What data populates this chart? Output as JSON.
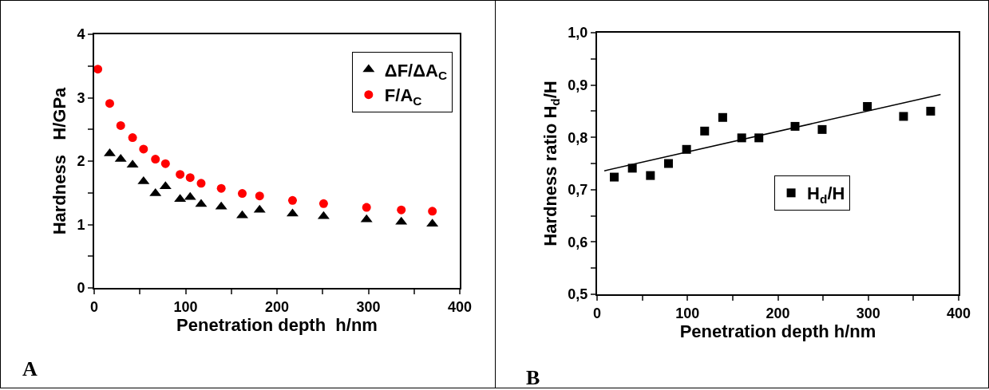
{
  "chart_data": [
    {
      "type": "scatter",
      "xlabel": "Penetration depth  h/nm",
      "ylabel": "Hardness   H/GPa",
      "annotations": [
        "A"
      ],
      "xlim": [
        0,
        400
      ],
      "xticks": [
        0,
        {
          "value": 50,
          "label": null
        },
        100,
        {
          "value": 150,
          "label": null
        },
        200,
        {
          "value": 250,
          "label": null
        },
        300,
        {
          "value": 350,
          "label": null
        },
        400
      ],
      "ylim": [
        0,
        4
      ],
      "yticks": [
        0,
        {
          "value": 0.5,
          "label": null
        },
        1,
        {
          "value": 1.5,
          "label": null
        },
        2,
        {
          "value": 2.5,
          "label": null
        },
        3,
        {
          "value": 3.5,
          "label": null
        },
        4
      ],
      "grid": false,
      "legend": "top right",
      "series": [
        {
          "name": "ΔF/ΔA$_{C}$",
          "color": "#000000",
          "marker": "triangle",
          "x": [
            17,
            29,
            42,
            54,
            67,
            78,
            94,
            105,
            117,
            139,
            162,
            181,
            217,
            251,
            298,
            336,
            370
          ],
          "values": [
            2.12,
            2.03,
            1.94,
            1.68,
            1.49,
            1.6,
            1.4,
            1.43,
            1.32,
            1.28,
            1.14,
            1.23,
            1.17,
            1.13,
            1.08,
            1.04,
            1.01
          ]
        },
        {
          "name": "F/A$_{C}$",
          "color": "#ff0000",
          "marker": "circle",
          "x": [
            4,
            17,
            29,
            42,
            54,
            67,
            78,
            94,
            105,
            117,
            139,
            162,
            181,
            217,
            251,
            298,
            336,
            370
          ],
          "values": [
            3.45,
            2.91,
            2.56,
            2.37,
            2.19,
            2.03,
            1.96,
            1.79,
            1.74,
            1.65,
            1.57,
            1.49,
            1.45,
            1.38,
            1.33,
            1.27,
            1.23,
            1.21
          ]
        }
      ]
    },
    {
      "type": "scatter",
      "xlabel": "Penetration depth h/nm",
      "ylabel": "Hardness ratio H$_{d}$/H",
      "annotations": [
        "B"
      ],
      "xlim": [
        0,
        400
      ],
      "xticks": [
        0,
        {
          "value": 50,
          "label": null
        },
        100,
        {
          "value": 150,
          "label": null
        },
        200,
        {
          "value": 250,
          "label": null
        },
        300,
        {
          "value": 350,
          "label": null
        },
        400
      ],
      "ylim": [
        0.5,
        1.0
      ],
      "yticks": [
        {
          "value": 0.5,
          "label": "0,5"
        },
        {
          "value": 0.55,
          "label": null
        },
        {
          "value": 0.6,
          "label": "0,6"
        },
        {
          "value": 0.65,
          "label": null
        },
        {
          "value": 0.7,
          "label": "0,7"
        },
        {
          "value": 0.75,
          "label": null
        },
        {
          "value": 0.8,
          "label": "0,8"
        },
        {
          "value": 0.85,
          "label": null
        },
        {
          "value": 0.9,
          "label": "0,9"
        },
        {
          "value": 0.95,
          "label": null
        },
        {
          "value": 1.0,
          "label": "1,0"
        }
      ],
      "grid": false,
      "legend": "bottom right",
      "series": [
        {
          "name": "H$_{d}$/H",
          "color": "#000000",
          "marker": "square",
          "x": [
            19,
            39,
            59,
            79,
            99,
            119,
            139,
            160,
            179,
            219,
            249,
            299,
            339,
            369
          ],
          "values": [
            0.724,
            0.741,
            0.727,
            0.75,
            0.777,
            0.812,
            0.838,
            0.799,
            0.799,
            0.821,
            0.815,
            0.859,
            0.84,
            0.85
          ]
        },
        {
          "type": "line",
          "color": "#000000",
          "marker": "none",
          "line_style": "solid",
          "x": [
            8,
            380
          ],
          "values": [
            0.736,
            0.882
          ]
        }
      ]
    }
  ]
}
